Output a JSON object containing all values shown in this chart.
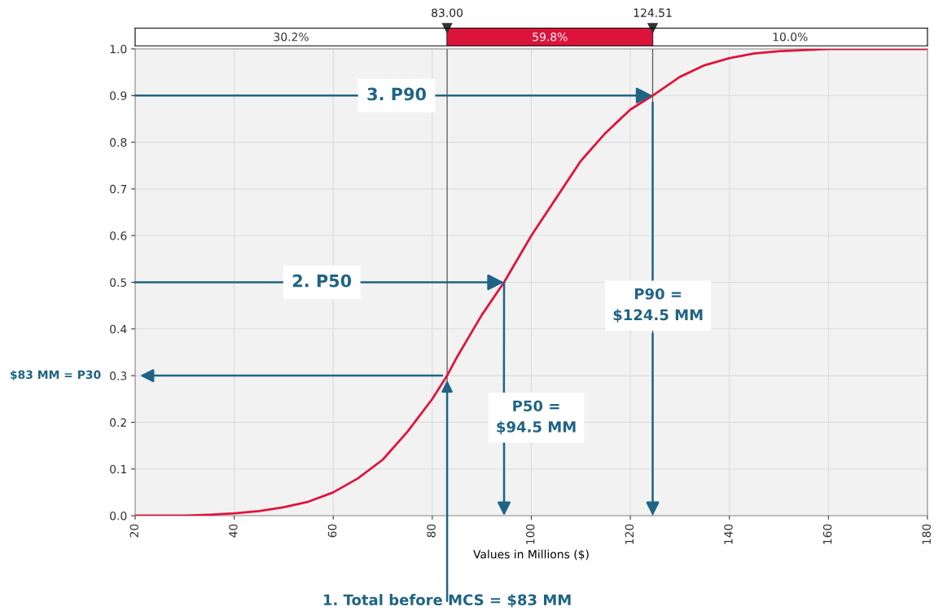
{
  "chart_data": {
    "type": "line",
    "xlabel": "Values in Millions ($)",
    "x": [
      20,
      30,
      35,
      40,
      45,
      50,
      55,
      60,
      65,
      70,
      75,
      80,
      83,
      85,
      90,
      94.5,
      100,
      105,
      110,
      115,
      120,
      124.51,
      130,
      135,
      140,
      145,
      150,
      160,
      180
    ],
    "series": [
      {
        "color": "#e0143c",
        "values": [
          0,
          0,
          0.002,
          0.005,
          0.01,
          0.018,
          0.03,
          0.05,
          0.08,
          0.12,
          0.18,
          0.25,
          0.3,
          0.34,
          0.43,
          0.5,
          0.6,
          0.68,
          0.76,
          0.82,
          0.87,
          0.9,
          0.94,
          0.965,
          0.98,
          0.99,
          0.995,
          1.0,
          1.0
        ]
      }
    ],
    "xlim": [
      20,
      180
    ],
    "xticks": [
      20,
      40,
      60,
      80,
      100,
      120,
      140,
      160,
      180
    ],
    "ylim": [
      0,
      1.0
    ],
    "yticks": [
      {
        "value": 0,
        "label": "0.0"
      },
      {
        "value": 0.1,
        "label": "0.1"
      },
      {
        "value": 0.2,
        "label": "0.2"
      },
      {
        "value": 0.3,
        "label": "0.3"
      },
      {
        "value": 0.4,
        "label": "0.4"
      },
      {
        "value": 0.5,
        "label": "0.5"
      },
      {
        "value": 0.6,
        "label": "0.6"
      },
      {
        "value": 0.7,
        "label": "0.7"
      },
      {
        "value": 0.8,
        "label": "0.8"
      },
      {
        "value": 0.9,
        "label": "0.9"
      },
      {
        "value": 1.0,
        "label": "1.0"
      }
    ],
    "grid": true,
    "ref_lines": [
      {
        "axis": "x",
        "value": 83,
        "label": "83.00",
        "color": "#555555"
      },
      {
        "axis": "x",
        "value": 124.51,
        "label": "124.51",
        "color": "#555555"
      }
    ],
    "annotations": [
      "30.2%",
      "59.8%",
      "10.0%",
      {
        "text": "3. P90",
        "x": 124.51,
        "y": 0.9
      },
      {
        "text": "2. P50",
        "x": 94.5,
        "y": 0.5
      },
      {
        "text": "P90 =\n$124.5 MM",
        "x": 124.51,
        "y": 0.9
      },
      {
        "text": "P50 =\n$94.5 MM",
        "x": 94.5,
        "y": 0.5
      },
      "$83 MM = P30",
      {
        "text": "1. Total before MCS = $83 MM",
        "x": 83,
        "y": 0.3
      }
    ]
  }
}
